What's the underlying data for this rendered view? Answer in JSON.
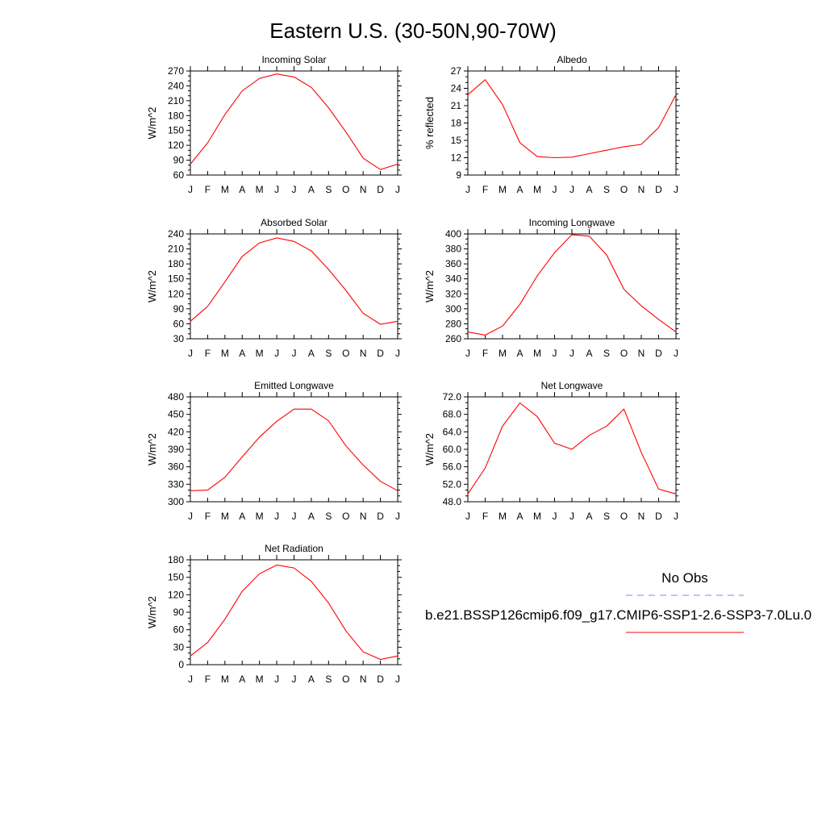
{
  "figure": {
    "title": "Eastern U.S. (30-50N,90-70W)"
  },
  "legend": {
    "obs_label": "No Obs",
    "model_label": "b.e21.BSSP126cmip6.f09_g17.CMIP6-SSP1-2.6-SSP3-7.0Lu.0",
    "obs_color": "#8080ff",
    "model_color": "#ff0000"
  },
  "chart_data": [
    {
      "type": "line",
      "title": "Incoming Solar",
      "ylabel": "W/m^2",
      "x": [
        "J",
        "F",
        "M",
        "A",
        "M",
        "J",
        "J",
        "A",
        "S",
        "O",
        "N",
        "D",
        "J"
      ],
      "ylim": [
        60,
        270
      ],
      "yticks": [
        "60",
        "90",
        "120",
        "150",
        "180",
        "210",
        "240",
        "270"
      ],
      "series": [
        {
          "values": [
            82,
            125,
            182,
            230,
            255,
            264,
            258,
            237,
            196,
            147,
            94,
            71,
            82
          ],
          "color": "#ff0000"
        }
      ]
    },
    {
      "type": "line",
      "title": "Albedo",
      "ylabel": "% reflected",
      "x": [
        "J",
        "F",
        "M",
        "A",
        "M",
        "J",
        "J",
        "A",
        "S",
        "O",
        "N",
        "D",
        "J"
      ],
      "ylim": [
        9,
        27
      ],
      "yticks": [
        "9",
        "12",
        "15",
        "18",
        "21",
        "24",
        "27"
      ],
      "series": [
        {
          "values": [
            22.9,
            25.5,
            21.2,
            14.6,
            12.2,
            12.0,
            12.1,
            12.7,
            13.3,
            13.9,
            14.3,
            17.2,
            22.9
          ],
          "color": "#ff0000"
        }
      ]
    },
    {
      "type": "line",
      "title": "Absorbed Solar",
      "ylabel": "W/m^2",
      "x": [
        "J",
        "F",
        "M",
        "A",
        "M",
        "J",
        "J",
        "A",
        "S",
        "O",
        "N",
        "D",
        "J"
      ],
      "ylim": [
        30,
        240
      ],
      "yticks": [
        "30",
        "60",
        "90",
        "120",
        "150",
        "180",
        "210",
        "240"
      ],
      "series": [
        {
          "values": [
            65,
            95,
            144,
            195,
            222,
            232,
            225,
            206,
            169,
            127,
            81,
            59,
            65
          ],
          "color": "#ff0000"
        }
      ]
    },
    {
      "type": "line",
      "title": "Incoming Longwave",
      "ylabel": "W/m^2",
      "x": [
        "J",
        "F",
        "M",
        "A",
        "M",
        "J",
        "J",
        "A",
        "S",
        "O",
        "N",
        "D",
        "J"
      ],
      "ylim": [
        260,
        400
      ],
      "yticks": [
        "260",
        "280",
        "300",
        "320",
        "340",
        "360",
        "380",
        "400"
      ],
      "series": [
        {
          "values": [
            269,
            265,
            277,
            306,
            344,
            375,
            399,
            397,
            372,
            326,
            304,
            286,
            269
          ],
          "color": "#ff0000"
        }
      ]
    },
    {
      "type": "line",
      "title": "Emitted Longwave",
      "ylabel": "W/m^2",
      "x": [
        "J",
        "F",
        "M",
        "A",
        "M",
        "J",
        "J",
        "A",
        "S",
        "O",
        "N",
        "D",
        "J"
      ],
      "ylim": [
        300,
        480
      ],
      "yticks": [
        "300",
        "330",
        "360",
        "390",
        "420",
        "450",
        "480"
      ],
      "series": [
        {
          "values": [
            319,
            320,
            342,
            377,
            411,
            438,
            459,
            459,
            439,
            396,
            363,
            335,
            319
          ],
          "color": "#ff0000"
        }
      ]
    },
    {
      "type": "line",
      "title": "Net Longwave",
      "ylabel": "W/m^2",
      "x": [
        "J",
        "F",
        "M",
        "A",
        "M",
        "J",
        "J",
        "A",
        "S",
        "O",
        "N",
        "D",
        "J"
      ],
      "ylim": [
        48,
        72
      ],
      "yticks": [
        "48.0",
        "52.0",
        "56.0",
        "60.0",
        "64.0",
        "68.0",
        "72.0"
      ],
      "series": [
        {
          "values": [
            49.8,
            55.7,
            65.3,
            70.6,
            67.5,
            61.4,
            60.0,
            63.2,
            65.3,
            69.2,
            59.3,
            50.9,
            49.8
          ],
          "color": "#ff0000"
        }
      ]
    },
    {
      "type": "line",
      "title": "Net Radiation",
      "ylabel": "W/m^2",
      "x": [
        "J",
        "F",
        "M",
        "A",
        "M",
        "J",
        "J",
        "A",
        "S",
        "O",
        "N",
        "D",
        "J"
      ],
      "ylim": [
        0,
        180
      ],
      "yticks": [
        "0",
        "30",
        "60",
        "90",
        "120",
        "150",
        "180"
      ],
      "series": [
        {
          "values": [
            15,
            38,
            78,
            126,
            156,
            171,
            166,
            143,
            106,
            58,
            22,
            9,
            15
          ],
          "color": "#ff0000"
        }
      ]
    }
  ]
}
